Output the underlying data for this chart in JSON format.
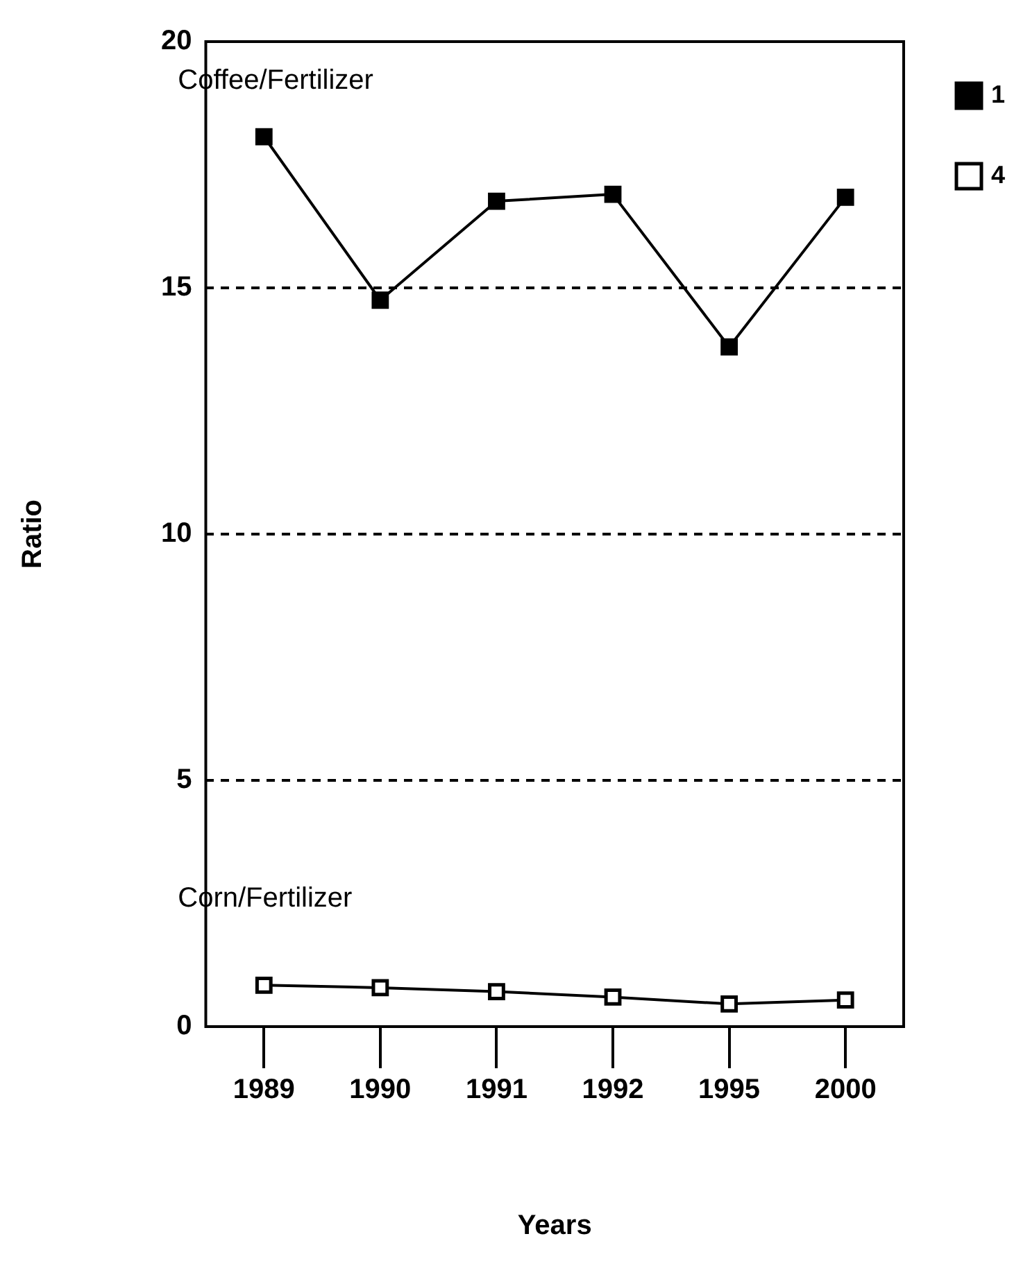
{
  "chart_data": {
    "type": "line",
    "xlabel": "Years",
    "ylabel": "Ratio",
    "categories": [
      "1989",
      "1990",
      "1991",
      "1992",
      "1995",
      "2000"
    ],
    "series": [
      {
        "name": "1",
        "color": "#000000",
        "marker": "square",
        "values": [
          18.07,
          14.75,
          16.76,
          16.9,
          13.8,
          16.84
        ]
      },
      {
        "name": "4",
        "color": "#000000",
        "marker": "square",
        "values": [
          0.84,
          0.79,
          0.71,
          0.6,
          0.46,
          0.54
        ]
      }
    ],
    "ylim": [
      0,
      20
    ],
    "yticks": [
      0,
      5,
      10,
      15,
      20
    ],
    "grid": "y",
    "line_style": "solid",
    "legend": "top right",
    "annotations": [
      "Coffee/Fertilizer",
      "Corn/Fertilizer"
    ]
  }
}
